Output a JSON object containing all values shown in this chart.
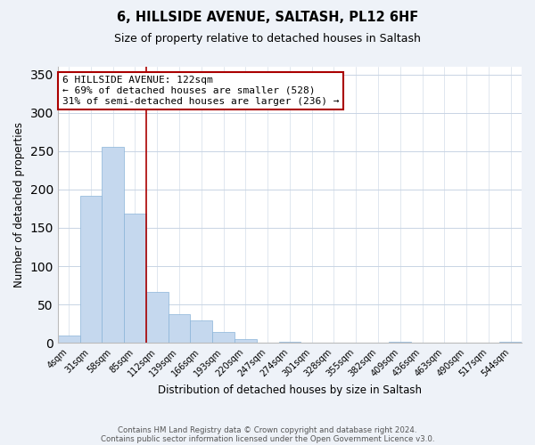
{
  "title": "6, HILLSIDE AVENUE, SALTASH, PL12 6HF",
  "subtitle": "Size of property relative to detached houses in Saltash",
  "xlabel": "Distribution of detached houses by size in Saltash",
  "ylabel": "Number of detached properties",
  "bar_labels": [
    "4sqm",
    "31sqm",
    "58sqm",
    "85sqm",
    "112sqm",
    "139sqm",
    "166sqm",
    "193sqm",
    "220sqm",
    "247sqm",
    "274sqm",
    "301sqm",
    "328sqm",
    "355sqm",
    "382sqm",
    "409sqm",
    "436sqm",
    "463sqm",
    "490sqm",
    "517sqm",
    "544sqm"
  ],
  "bar_values": [
    10,
    192,
    255,
    168,
    67,
    37,
    29,
    14,
    5,
    0,
    2,
    0,
    0,
    0,
    0,
    2,
    0,
    0,
    0,
    0,
    2
  ],
  "bar_color": "#c5d8ee",
  "bar_edge_color": "#8ab4d8",
  "vline_x_idx": 3,
  "vline_color": "#aa0000",
  "annotation_text_line1": "6 HILLSIDE AVENUE: 122sqm",
  "annotation_text_line2": "← 69% of detached houses are smaller (528)",
  "annotation_text_line3": "31% of semi-detached houses are larger (236) →",
  "box_edge_color": "#aa0000",
  "ylim": [
    0,
    360
  ],
  "yticks": [
    0,
    50,
    100,
    150,
    200,
    250,
    300,
    350
  ],
  "footer_line1": "Contains HM Land Registry data © Crown copyright and database right 2024.",
  "footer_line2": "Contains public sector information licensed under the Open Government Licence v3.0.",
  "background_color": "#eef2f8",
  "plot_background_color": "#ffffff",
  "grid_color": "#c8d4e4"
}
